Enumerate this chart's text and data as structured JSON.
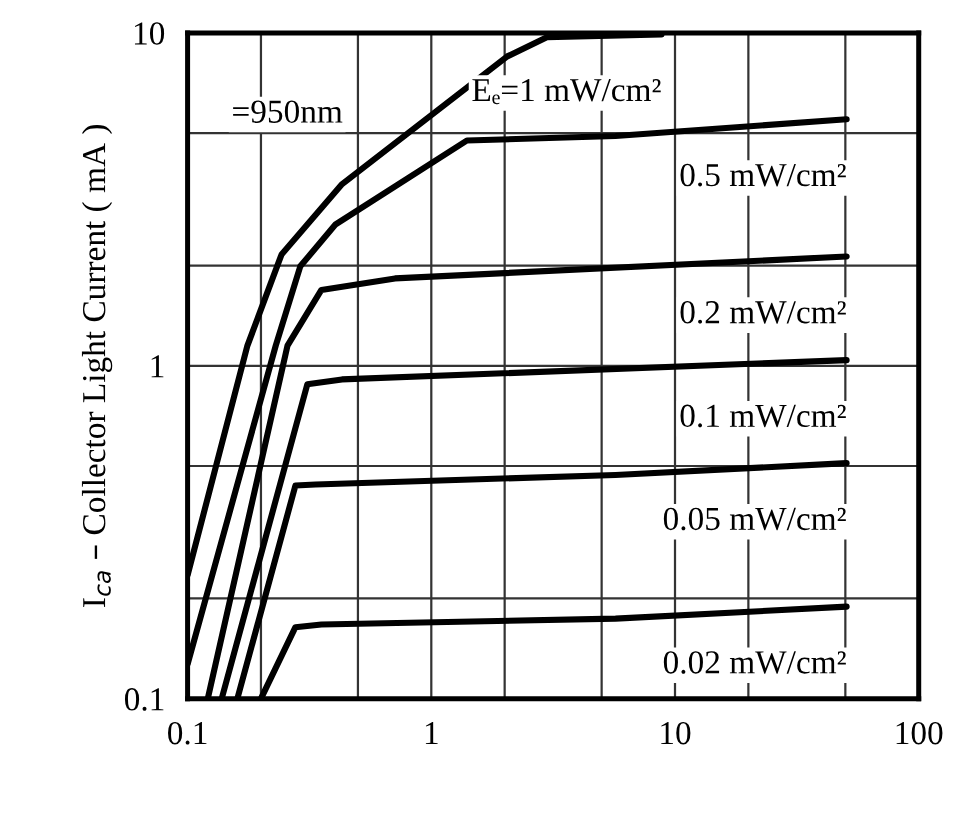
{
  "chart_data": {
    "type": "line",
    "ylabel": "I$_{ca}$ – Collector Light Current ( mA )",
    "annotations": [
      "=950nm"
    ],
    "log": "xy",
    "grid": true,
    "marker": "none",
    "line_style": "solid",
    "xlim": [
      0.1,
      100
    ],
    "ylim": [
      0.1,
      10
    ],
    "xticks": [
      0.1,
      {
        "value": 0.2,
        "label": null
      },
      {
        "value": 0.5,
        "label": null
      },
      1,
      {
        "value": 2,
        "label": null
      },
      {
        "value": 5,
        "label": null
      },
      10,
      {
        "value": 20,
        "label": null
      },
      {
        "value": 50,
        "label": null
      },
      100
    ],
    "yticks": [
      0.1,
      {
        "value": 0.2,
        "label": null
      },
      {
        "value": 0.5,
        "label": null
      },
      1,
      {
        "value": 2,
        "label": null
      },
      {
        "value": 5,
        "label": null
      },
      10
    ],
    "series": [
      {
        "name": "Eₑ=1 mW/cm²",
        "color": "#000000",
        "x": [
          0.1,
          0.176,
          0.243,
          0.428,
          2.05,
          2.98,
          8.8
        ],
        "values": [
          0.235,
          1.15,
          2.16,
          3.5,
          8.5,
          9.7,
          9.9
        ]
      },
      {
        "name": "0.5 mW/cm²",
        "color": "#000000",
        "x": [
          0.1,
          0.23,
          0.29,
          0.405,
          1.4,
          5.7,
          50.6
        ],
        "values": [
          0.127,
          1.15,
          1.99,
          2.66,
          4.75,
          4.9,
          5.5
        ]
      },
      {
        "name": "0.2 mW/cm²",
        "color": "#000000",
        "x": [
          0.121,
          0.257,
          0.354,
          0.71,
          50.6
        ],
        "values": [
          0.1,
          1.15,
          1.69,
          1.83,
          2.13
        ]
      },
      {
        "name": "0.1 mW/cm²",
        "color": "#000000",
        "x": [
          0.138,
          0.31,
          0.43,
          50.6
        ],
        "values": [
          0.1,
          0.88,
          0.91,
          1.04
        ]
      },
      {
        "name": "0.05 mW/cm²",
        "color": "#000000",
        "x": [
          0.16,
          0.277,
          0.335,
          5.7,
          50.6
        ],
        "values": [
          0.1,
          0.437,
          0.44,
          0.47,
          0.51
        ]
      },
      {
        "name": "0.02 mW/cm²",
        "color": "#000000",
        "x": [
          0.2,
          0.277,
          0.354,
          5.7,
          50.6
        ],
        "values": [
          0.1,
          0.164,
          0.167,
          0.174,
          0.189
        ]
      }
    ]
  }
}
